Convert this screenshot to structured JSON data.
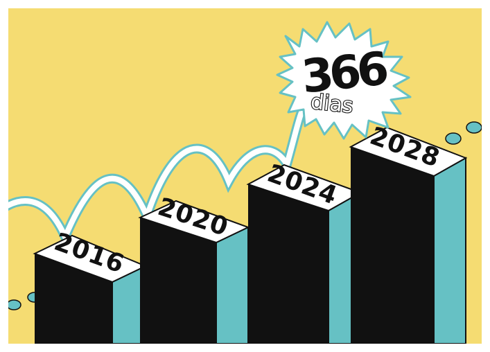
{
  "illustration": {
    "colors": {
      "background": "#f5dc72",
      "bar_front": "#111111",
      "bar_side": "#66c1c4",
      "bar_top": "#ffffff",
      "arc": "#ffffff",
      "arc_outline": "#66c1c4",
      "ink": "#111111"
    },
    "bars": [
      {
        "label": "2016"
      },
      {
        "label": "2020"
      },
      {
        "label": "2024"
      },
      {
        "label": "2028"
      }
    ],
    "burst": {
      "number": "366",
      "word": "dias"
    }
  }
}
